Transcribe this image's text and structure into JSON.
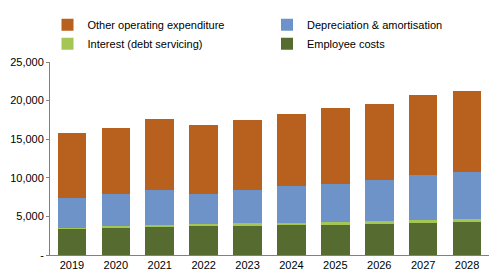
{
  "chart_data": {
    "type": "bar",
    "stacked": true,
    "legend": "top",
    "grid": false,
    "categories": [
      "2019",
      "2020",
      "2021",
      "2022",
      "2023",
      "2024",
      "2025",
      "2026",
      "2027",
      "2028"
    ],
    "series": [
      {
        "name": "Employee costs",
        "color": "#556B2F",
        "values": [
          3400,
          3550,
          3650,
          3700,
          3800,
          3850,
          3950,
          4000,
          4150,
          4250
        ]
      },
      {
        "name": "Interest (debt servicing)",
        "color": "#A3C655",
        "values": [
          150,
          200,
          200,
          300,
          300,
          300,
          350,
          400,
          400,
          450
        ]
      },
      {
        "name": "Depreciation & amortisation",
        "color": "#6E93C8",
        "values": [
          3850,
          4150,
          4550,
          3900,
          4300,
          4750,
          4900,
          5300,
          5750,
          6000
        ]
      },
      {
        "name": "Other operating expenditure",
        "color": "#B8601E",
        "values": [
          8400,
          8600,
          9200,
          8900,
          9100,
          9400,
          9900,
          9900,
          10400,
          10600
        ]
      }
    ],
    "ylim": [
      0,
      25000
    ],
    "yticks": [
      {
        "value": 0,
        "label": "-"
      },
      {
        "value": 5000,
        "label": "5,000"
      },
      {
        "value": 10000,
        "label": "10,000"
      },
      {
        "value": 15000,
        "label": "15,000"
      },
      {
        "value": 20000,
        "label": "20,000"
      },
      {
        "value": 25000,
        "label": "25,000"
      }
    ]
  }
}
